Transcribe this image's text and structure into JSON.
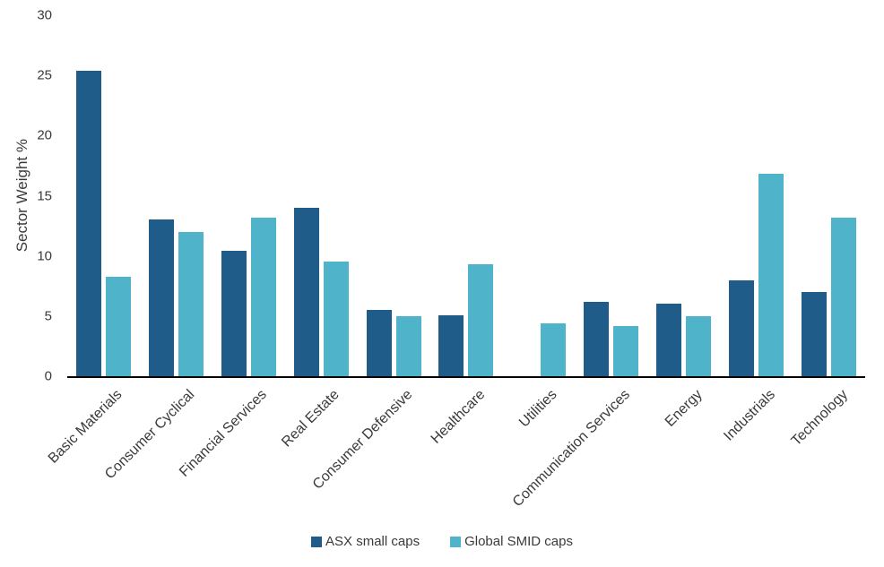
{
  "chart_data": {
    "type": "bar",
    "title": "",
    "xlabel": "",
    "ylabel": "Sector Weight %",
    "ylim": [
      0,
      30
    ],
    "yticks": [
      0,
      5,
      10,
      15,
      20,
      25,
      30
    ],
    "grid": false,
    "legend_position": "bottom",
    "categories": [
      "Basic Materials",
      "Consumer Cyclical",
      "Financial Services",
      "Real Estate",
      "Consumer Defensive",
      "Healthcare",
      "Utilities",
      "Communication Services",
      "Energy",
      "Industrials",
      "Technology"
    ],
    "series": [
      {
        "name": "ASX small caps",
        "color": "#1f5c8a",
        "values": [
          25.4,
          13.0,
          10.4,
          14.0,
          5.5,
          5.1,
          0,
          6.2,
          6.0,
          8.0,
          7.0
        ]
      },
      {
        "name": "Global SMID caps",
        "color": "#4fb3c9",
        "values": [
          8.3,
          12.0,
          13.2,
          9.5,
          5.0,
          9.3,
          4.4,
          4.2,
          5.0,
          16.8,
          13.2
        ]
      }
    ]
  }
}
